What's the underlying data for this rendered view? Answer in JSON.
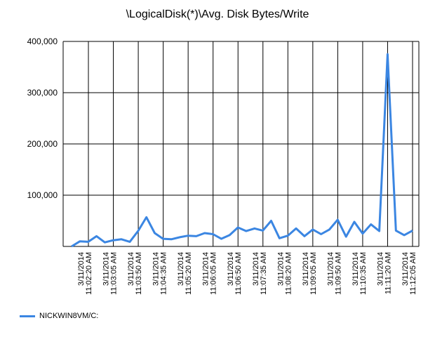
{
  "chart_data": {
    "type": "line",
    "title": "\\LogicalDisk(*)\\Avg. Disk Bytes/Write",
    "xlabel": "",
    "ylabel": "",
    "ylim": [
      0,
      400000
    ],
    "y_ticks": [
      "400,000",
      "300,000",
      "200,000",
      "100,000"
    ],
    "y_tick_values": [
      400000,
      300000,
      200000,
      100000
    ],
    "grid": true,
    "legend_position": "bottom-left",
    "x_tick_labels": [
      [
        "3/11/2014",
        "11:02:20 AM"
      ],
      [
        "3/11/2014",
        "11:03:05 AM"
      ],
      [
        "3/11/2014",
        "11:03:50 AM"
      ],
      [
        "3/11/2014",
        "11:04:35 AM"
      ],
      [
        "3/11/2014",
        "11:05:20 AM"
      ],
      [
        "3/11/2014",
        "11:06:05 AM"
      ],
      [
        "3/11/2014",
        "11:06:50 AM"
      ],
      [
        "3/11/2014",
        "11:07:35 AM"
      ],
      [
        "3/11/2014",
        "11:08:20 AM"
      ],
      [
        "3/11/2014",
        "11:09:05 AM"
      ],
      [
        "3/11/2014",
        "11:09:50 AM"
      ],
      [
        "3/11/2014",
        "11:10:35 AM"
      ],
      [
        "3/11/2014",
        "11:11:20 AM"
      ],
      [
        "3/11/2014",
        "11:12:05 AM"
      ]
    ],
    "series": [
      {
        "name": "NICKWIN8VM/C:",
        "color": "#3b86e2",
        "values": [
          0,
          10000,
          9000,
          20000,
          8000,
          12000,
          14000,
          9000,
          30000,
          57000,
          26000,
          15000,
          14000,
          18000,
          21000,
          20000,
          26000,
          24000,
          15000,
          22000,
          37000,
          30000,
          35000,
          31000,
          50000,
          16000,
          21000,
          35000,
          20000,
          33000,
          24000,
          33000,
          52000,
          19000,
          48000,
          25000,
          43000,
          30000,
          375000,
          31000,
          22000,
          31000
        ]
      }
    ]
  }
}
